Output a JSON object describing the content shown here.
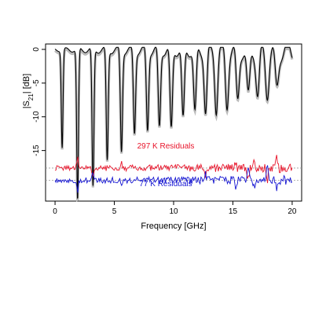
{
  "chart_data": {
    "type": "line",
    "title": "",
    "xlabel": "Frequency [GHz]",
    "ylabel": "|S21| [dB]",
    "xlim": [
      -0.8,
      20.8
    ],
    "ylim": [
      -22.5,
      0.8
    ],
    "x_ticks": [
      0,
      5,
      10,
      15,
      20
    ],
    "y_ticks": [
      0,
      -5,
      -10,
      -15
    ],
    "grid": false,
    "legend": "none",
    "colors": {
      "measured": "#000000",
      "model": "#bbbbbb",
      "residual_297": "#e8142a",
      "residual_77": "#1414d2",
      "baseline": "#999999"
    },
    "notch_frequencies": [
      0.6,
      1.9,
      3.2,
      4.4,
      5.6,
      6.7,
      7.8,
      8.8,
      9.8,
      10.8,
      11.8,
      12.7,
      13.6,
      14.5,
      15.4,
      16.3,
      17.1,
      17.9,
      18.7
    ],
    "notch_depths": [
      -14.5,
      -22.5,
      -20.5,
      -16.5,
      -15.0,
      -12.3,
      -11.8,
      -11.5,
      -12.0,
      -10.5,
      -9.5,
      -9.2,
      -8.5,
      -8.0,
      -7.5,
      -7.0,
      -6.5,
      -6.0,
      -5.5
    ],
    "residual_series": [
      {
        "name": "297 K Residuals",
        "color": "#e8142a",
        "baseline": -17.6,
        "ripple": 0.35
      },
      {
        "name": "77 K Residuals",
        "color": "#1414d2",
        "baseline": -19.4,
        "ripple": 0.35
      }
    ],
    "residual_spikes": [
      {
        "f": 1.9,
        "d": 1.6
      },
      {
        "f": 3.2,
        "d": 1.3
      },
      {
        "f": 5.6,
        "d": 0.9
      },
      {
        "f": 12.7,
        "d": 0.9
      },
      {
        "f": 15.2,
        "d": 1.0
      },
      {
        "f": 16.3,
        "d": 1.8
      },
      {
        "f": 16.8,
        "d": 1.3
      },
      {
        "f": 17.9,
        "d": 2.3
      },
      {
        "f": 18.7,
        "d": 1.8
      }
    ]
  }
}
